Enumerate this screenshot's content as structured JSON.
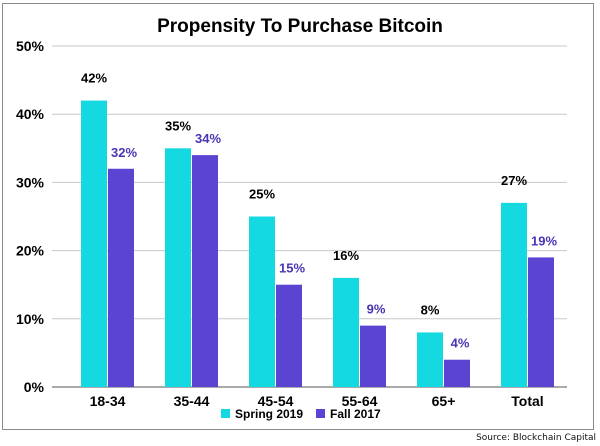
{
  "chart_data": {
    "type": "bar",
    "title": "Propensity To Purchase Bitcoin",
    "xlabel": "",
    "ylabel": "",
    "ylim": [
      0,
      50
    ],
    "yticks": [
      "0%",
      "10%",
      "20%",
      "30%",
      "40%",
      "50%"
    ],
    "ytick_values": [
      0,
      10,
      20,
      30,
      40,
      50
    ],
    "grid": true,
    "categories": [
      "18-34",
      "35-44",
      "45-54",
      "55-64",
      "65+",
      "Total"
    ],
    "series": [
      {
        "name": "Spring 2019",
        "color": "#14d9e0",
        "label_color": "#000000",
        "values": [
          42,
          35,
          25,
          16,
          8,
          27
        ],
        "labels": [
          "42%",
          "35%",
          "25%",
          "16%",
          "8%",
          "27%"
        ]
      },
      {
        "name": "Fall 2017",
        "color": "#5b44d2",
        "label_color": "#4b34b4",
        "values": [
          32,
          34,
          15,
          9,
          4,
          19
        ],
        "labels": [
          "32%",
          "34%",
          "15%",
          "9%",
          "4%",
          "19%"
        ]
      }
    ],
    "legend_position": "bottom-center"
  },
  "source": "Source: Blockchain Capital"
}
